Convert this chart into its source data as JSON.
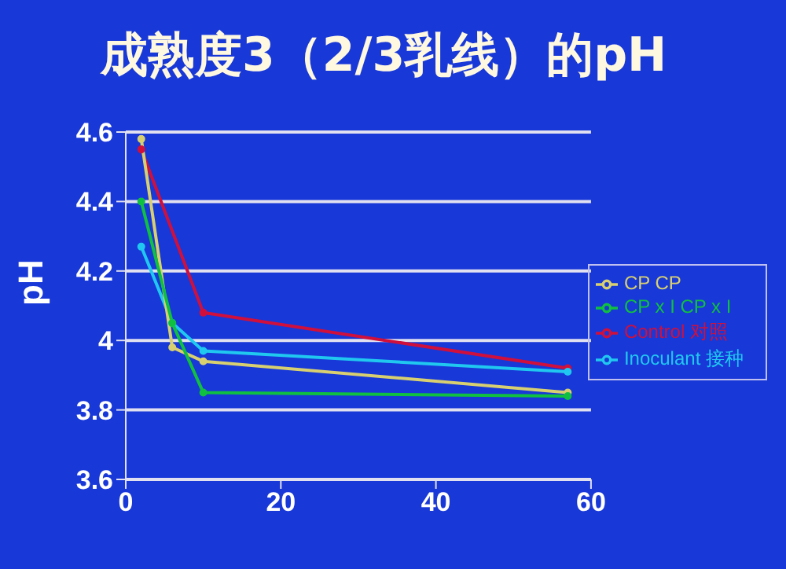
{
  "chart_data": {
    "type": "line",
    "title": "成熟度3（2/3乳线）的pH",
    "ylabel": "pH",
    "x": [
      2,
      6,
      10,
      57
    ],
    "series": [
      {
        "name": "Control 对照",
        "color": "#d0103c",
        "values": [
          4.55,
          null,
          4.08,
          3.92
        ]
      },
      {
        "name": "Inoculant 接种",
        "color": "#20c8f0",
        "values": [
          4.27,
          4.05,
          3.97,
          3.91
        ]
      },
      {
        "name": "CP CP",
        "color": "#d8d070",
        "values": [
          4.58,
          3.98,
          3.94,
          3.85
        ]
      },
      {
        "name": "CP x I CP x I",
        "color": "#10c040",
        "values": [
          4.4,
          4.05,
          3.85,
          3.84
        ]
      }
    ],
    "xlim": [
      0,
      60
    ],
    "xticks": [
      0,
      20,
      40,
      60
    ],
    "ylim": [
      3.6,
      4.6
    ],
    "yticks": [
      3.6,
      3.8,
      4,
      4.2,
      4.4,
      4.6
    ],
    "grid": "y",
    "legend": "right",
    "marker": "circle",
    "line_style": "solid"
  }
}
